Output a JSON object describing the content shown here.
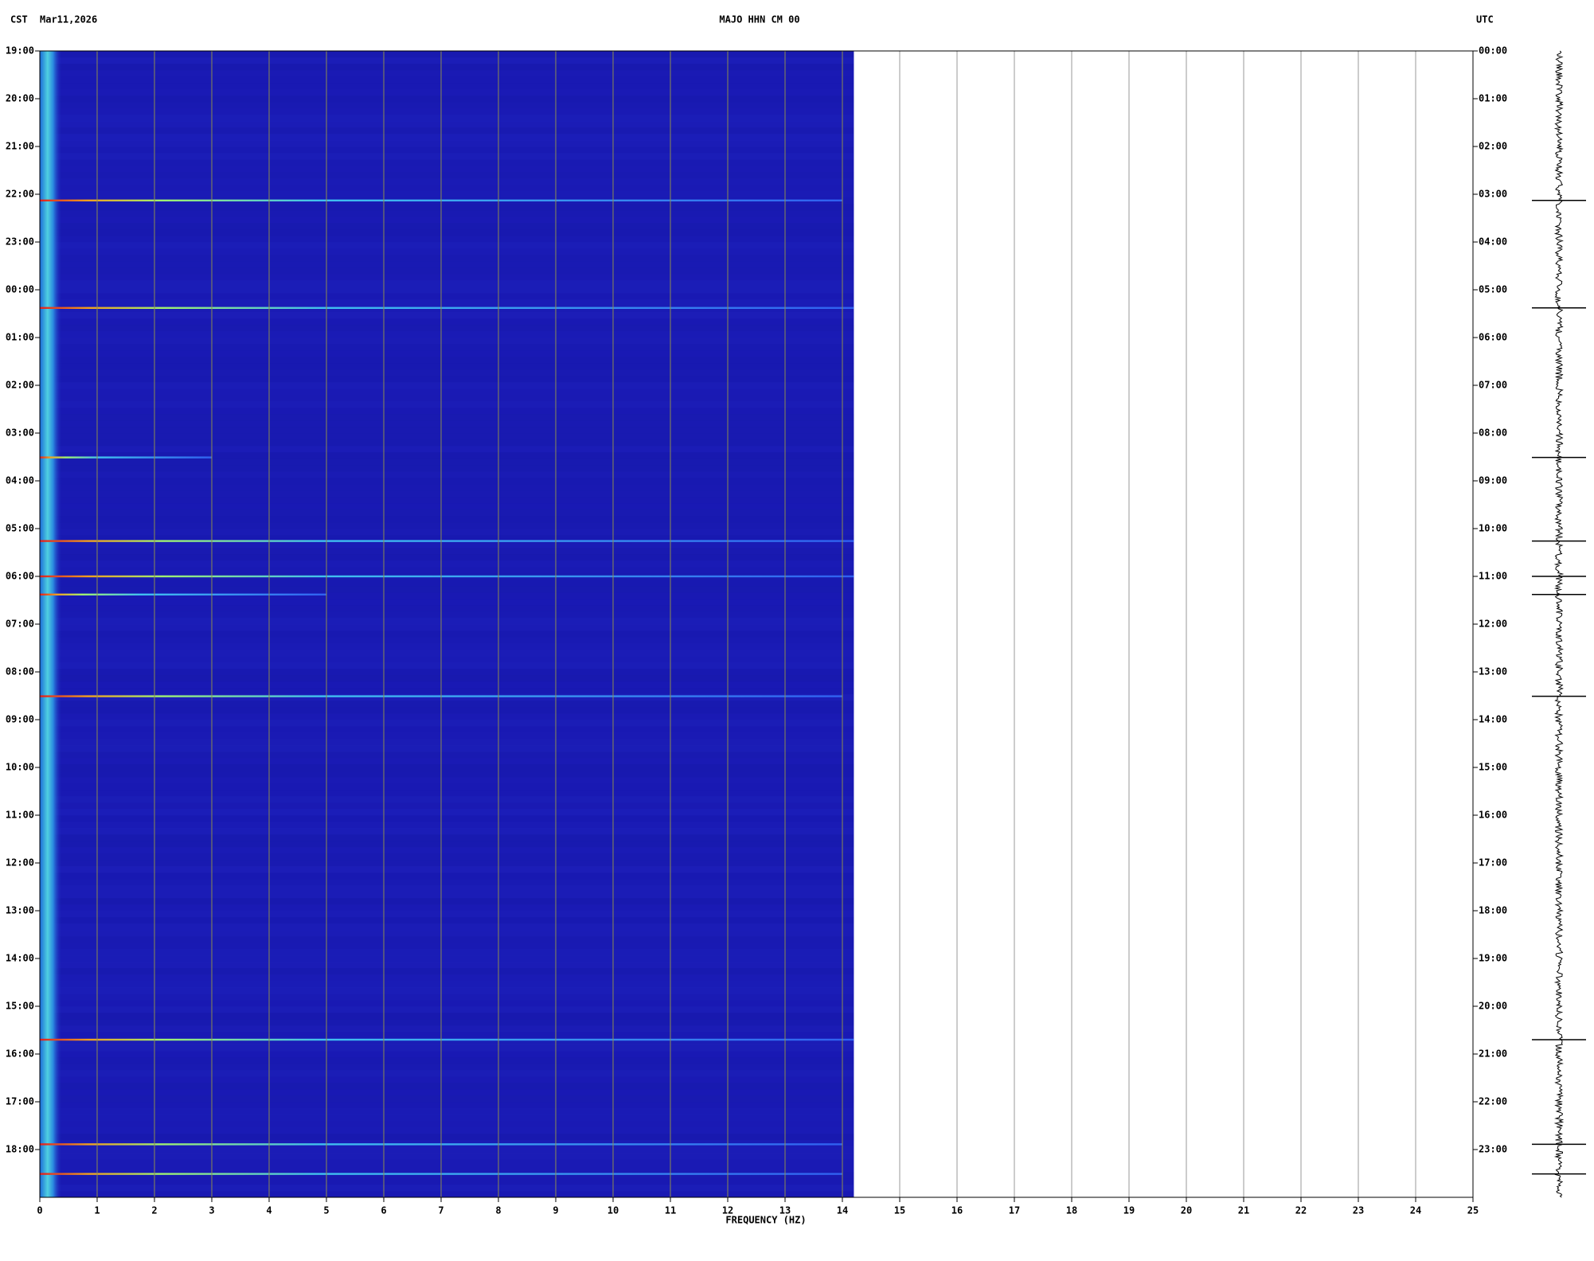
{
  "chart_data": {
    "type": "spectrogram",
    "header_left_tz": "CST",
    "header_date": "Mar11,2026",
    "title": "MAJO HHN CM 00",
    "header_right_tz": "UTC",
    "xlabel": "FREQUENCY (HZ)",
    "xlim": [
      0,
      25
    ],
    "data_xlim": [
      0,
      14.2
    ],
    "xticks": [
      0,
      1,
      2,
      3,
      4,
      5,
      6,
      7,
      8,
      9,
      10,
      11,
      12,
      13,
      14,
      15,
      16,
      17,
      18,
      19,
      20,
      21,
      22,
      23,
      24,
      25
    ],
    "ylim": [
      0,
      24
    ],
    "yticks": [
      {
        "value": 0,
        "label": "19:00"
      },
      {
        "value": 1,
        "label": "20:00"
      },
      {
        "value": 2,
        "label": "21:00"
      },
      {
        "value": 3,
        "label": "22:00"
      },
      {
        "value": 4,
        "label": "23:00"
      },
      {
        "value": 5,
        "label": "00:00"
      },
      {
        "value": 6,
        "label": "01:00"
      },
      {
        "value": 7,
        "label": "02:00"
      },
      {
        "value": 8,
        "label": "03:00"
      },
      {
        "value": 9,
        "label": "04:00"
      },
      {
        "value": 10,
        "label": "05:00"
      },
      {
        "value": 11,
        "label": "06:00"
      },
      {
        "value": 12,
        "label": "07:00"
      },
      {
        "value": 13,
        "label": "08:00"
      },
      {
        "value": 14,
        "label": "09:00"
      },
      {
        "value": 15,
        "label": "10:00"
      },
      {
        "value": 16,
        "label": "11:00"
      },
      {
        "value": 17,
        "label": "12:00"
      },
      {
        "value": 18,
        "label": "13:00"
      },
      {
        "value": 19,
        "label": "14:00"
      },
      {
        "value": 20,
        "label": "15:00"
      },
      {
        "value": 21,
        "label": "16:00"
      },
      {
        "value": 22,
        "label": "17:00"
      },
      {
        "value": 23,
        "label": "18:00"
      }
    ],
    "y2lim": [
      0,
      24
    ],
    "y2ticks": [
      {
        "value": 0,
        "label": "00:00"
      },
      {
        "value": 1,
        "label": "01:00"
      },
      {
        "value": 2,
        "label": "02:00"
      },
      {
        "value": 3,
        "label": "03:00"
      },
      {
        "value": 4,
        "label": "04:00"
      },
      {
        "value": 5,
        "label": "05:00"
      },
      {
        "value": 6,
        "label": "06:00"
      },
      {
        "value": 7,
        "label": "07:00"
      },
      {
        "value": 8,
        "label": "08:00"
      },
      {
        "value": 9,
        "label": "09:00"
      },
      {
        "value": 10,
        "label": "10:00"
      },
      {
        "value": 11,
        "label": "11:00"
      },
      {
        "value": 12,
        "label": "12:00"
      },
      {
        "value": 13,
        "label": "13:00"
      },
      {
        "value": 14,
        "label": "14:00"
      },
      {
        "value": 15,
        "label": "15:00"
      },
      {
        "value": 16,
        "label": "16:00"
      },
      {
        "value": 17,
        "label": "17:00"
      },
      {
        "value": 18,
        "label": "18:00"
      },
      {
        "value": 19,
        "label": "19:00"
      },
      {
        "value": 20,
        "label": "20:00"
      },
      {
        "value": 21,
        "label": "21:00"
      },
      {
        "value": 22,
        "label": "22:00"
      },
      {
        "value": 23,
        "label": "23:00"
      }
    ],
    "events": [
      {
        "y": 3.13,
        "xmax": 14
      },
      {
        "y": 5.38,
        "xmax": 14.2
      },
      {
        "y": 8.51,
        "xmax": 3
      },
      {
        "y": 10.26,
        "xmax": 14.2
      },
      {
        "y": 11.0,
        "xmax": 14.2
      },
      {
        "y": 11.38,
        "xmax": 5
      },
      {
        "y": 13.51,
        "xmax": 14
      },
      {
        "y": 20.7,
        "xmax": 14.2
      },
      {
        "y": 22.89,
        "xmax": 14
      },
      {
        "y": 23.51,
        "xmax": 14
      }
    ],
    "color": "#1a1ab4",
    "grid": true
  }
}
